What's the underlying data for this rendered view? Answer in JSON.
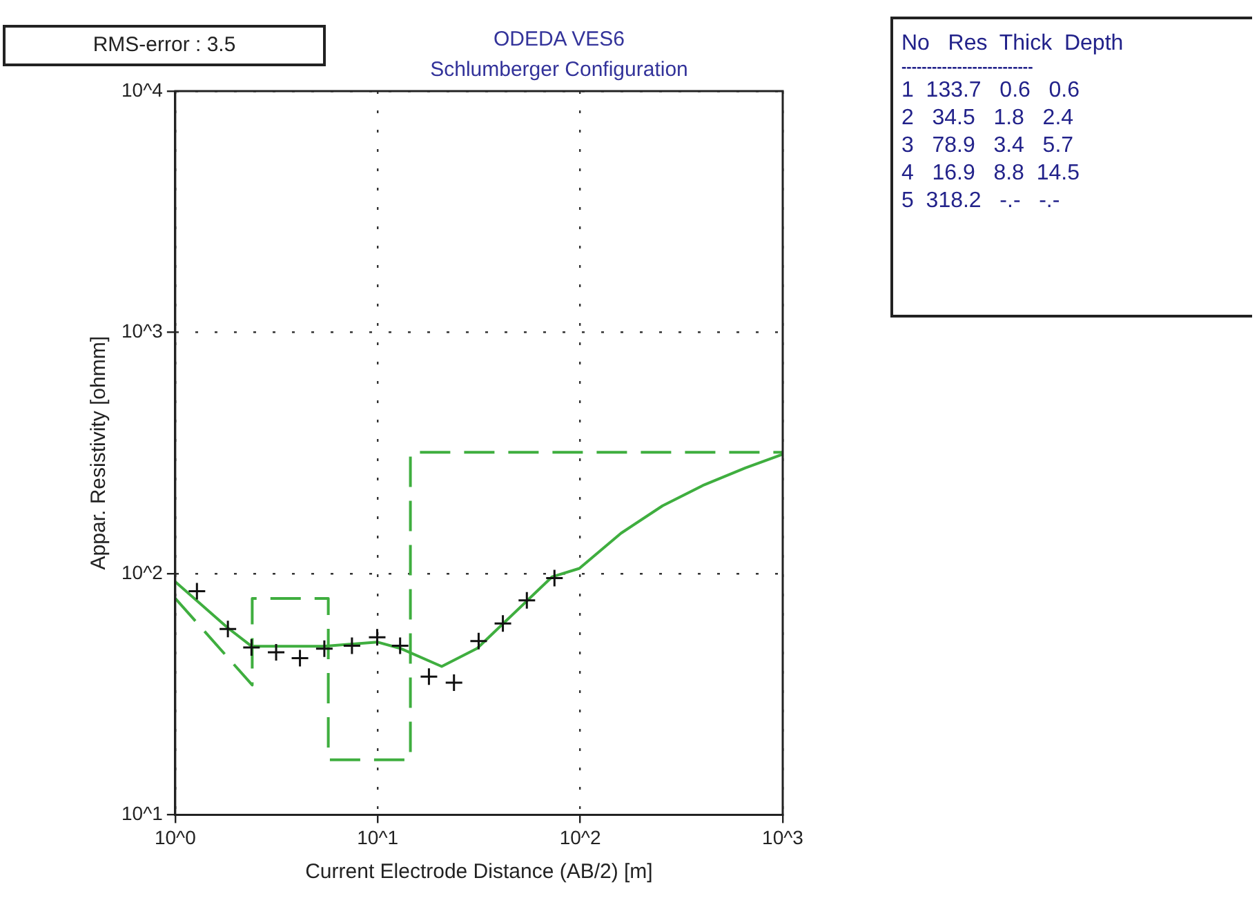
{
  "chart_data": {
    "type": "line",
    "title": "ODEDA VES6",
    "subtitle": "Schlumberger Configuration",
    "xlabel": "Current Electrode Distance (AB/2) [m]",
    "ylabel": "Appar. Resistivity [ohmm]",
    "log": "xy",
    "grid": true,
    "legend": false,
    "xlim": [
      1,
      1000
    ],
    "xticks": [
      {
        "value": 1,
        "label": "10^0"
      },
      {
        "value": 10,
        "label": "10^1"
      },
      {
        "value": 100,
        "label": "10^2"
      },
      {
        "value": 1000,
        "label": "10^3"
      }
    ],
    "ylim": [
      10,
      10000
    ],
    "yticks": [
      {
        "value": 10,
        "label": "10^1"
      },
      {
        "value": 100,
        "label": "10^2"
      },
      {
        "value": 1000,
        "label": "10^3"
      },
      {
        "value": 10000,
        "label": "10^4"
      }
    ],
    "series": [
      {
        "type": "scatter",
        "color": "#111111",
        "marker": "cross",
        "x": [
          1.28,
          1.82,
          2.38,
          3.15,
          4.13,
          5.45,
          7.46,
          9.94,
          12.9,
          17.9,
          23.8,
          31.5,
          41.5,
          54.5,
          74.6
        ],
        "values": [
          84.5,
          58.9,
          49.4,
          47.2,
          44.6,
          48.8,
          50.2,
          54.4,
          50.2,
          37.4,
          35.3,
          52.5,
          62.1,
          77.4,
          95.7
        ]
      },
      {
        "type": "line",
        "color": "#3fae3f",
        "line_style": "solid",
        "marker": "none",
        "x": [
          1,
          1.82,
          2.38,
          5.45,
          9.94,
          12.9,
          20.7,
          31,
          72.7,
          99,
          159,
          255,
          408,
          654,
          1000
        ],
        "values": [
          92.5,
          59.5,
          50,
          50,
          52,
          49,
          41.2,
          49,
          97,
          105,
          147,
          191,
          233,
          274,
          312
        ]
      },
      {
        "type": "line",
        "color": "#3fae3f",
        "line_style": "dashed",
        "marker": "none",
        "x": [
          1,
          2.4,
          2.4,
          5.7,
          5.7,
          14.5,
          14.5,
          1000
        ],
        "values": [
          79,
          34.5,
          78.9,
          78.9,
          16.9,
          16.9,
          318.2,
          318.2
        ]
      }
    ],
    "annotations": [
      "RMS-error :  3.5",
      "No   Res  Thick  Depth",
      "--------------------------",
      "1  133.7   0.6   0.6",
      "2   34.5   1.8   2.4",
      "3   78.9   3.4   5.7",
      "4   16.9   8.8  14.5",
      "5  318.2   -.-   -.-"
    ]
  }
}
